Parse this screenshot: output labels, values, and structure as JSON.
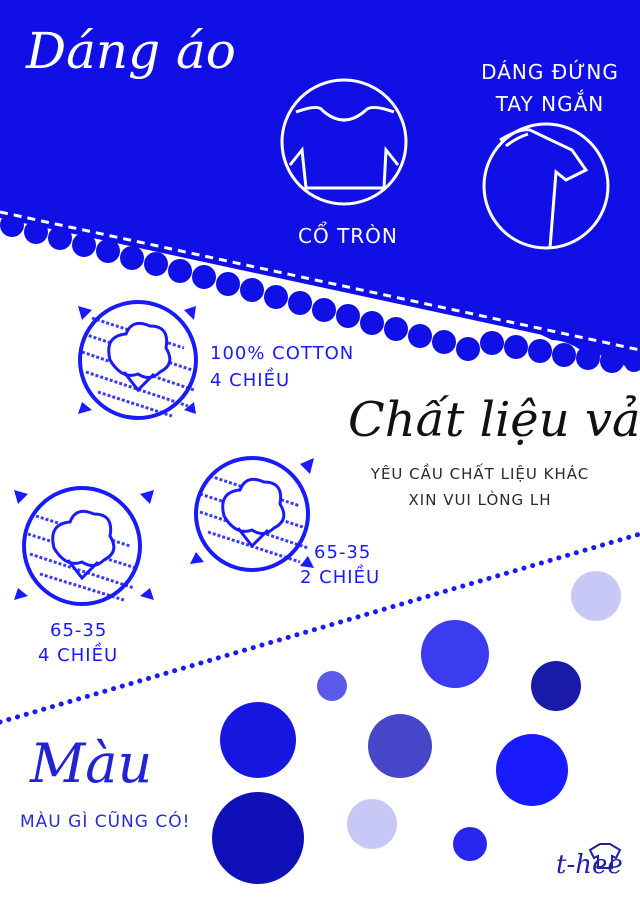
{
  "shape_section": {
    "title": "Dáng áo",
    "neck_label": "CỔ TRÒN",
    "sleeve_label_line1": "DÁNG ĐỨNG",
    "sleeve_label_line2": "TAY NGẮN"
  },
  "fabric_section": {
    "title": "Chất liệu vải",
    "note_line1": "YÊU CẦU CHẤT LIỆU KHÁC",
    "note_line2": "XIN VUI LÒNG LH",
    "options": [
      {
        "line1": "100% COTTON",
        "line2": "4 CHIỀU"
      },
      {
        "line1": "65-35",
        "line2": "2 CHIỀU"
      },
      {
        "line1": "65-35",
        "line2": "4 CHIỀU"
      }
    ]
  },
  "color_section": {
    "title": "Màu",
    "subtitle": "MÀU GÌ CŨNG CÓ!"
  },
  "logo": {
    "text": "t-hee"
  },
  "colors": {
    "royal_blue": "#1010e6",
    "bright_blue": "#1a1aff",
    "medium_blue": "#3b3bf0",
    "navy": "#1a1aa8",
    "slate_blue": "#4646c8",
    "light_blue": "#c8c8f7",
    "lavender": "#a9a9f0",
    "white": "#ffffff"
  }
}
